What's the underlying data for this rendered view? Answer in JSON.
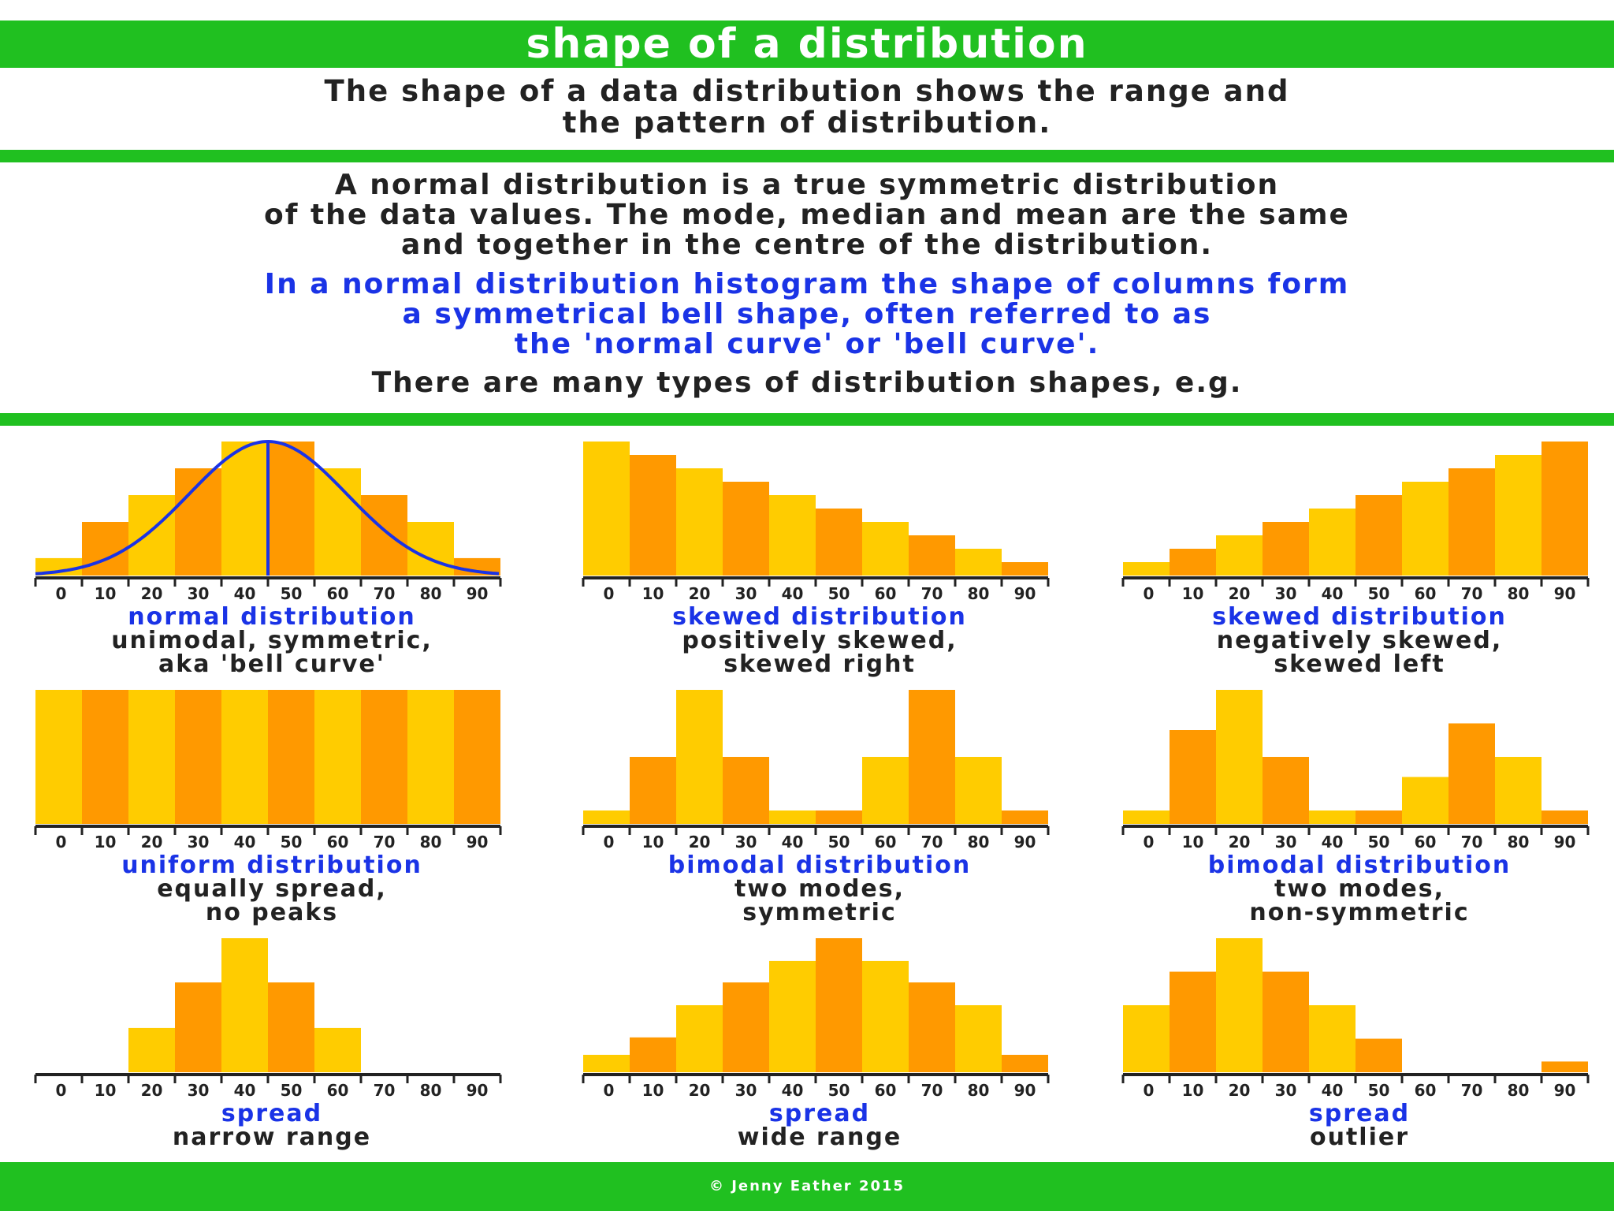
{
  "title": "shape of a distribution",
  "intro": [
    "The shape of a data distribution shows the range and",
    "the pattern of distribution."
  ],
  "normal_description": [
    "A normal distribution is a true symmetric distribution",
    "of the data values. The mode, median and mean are the same",
    "and together in the centre of the distribution."
  ],
  "bell_description": [
    "In a normal distribution histogram the shape of columns form",
    "a symmetrical bell shape, often referred to as",
    "the 'normal curve' or 'bell curve'."
  ],
  "types_line": "There are many types of distribution shapes, e.g.",
  "footer": "© Jenny Eather 2015",
  "colors": {
    "green": "#20c020",
    "bar_light": "#ffcc00",
    "bar_dark": "#ff9900",
    "blue": "#1a33e6"
  },
  "chart_data": [
    {
      "type": "bar",
      "categories": [
        "0",
        "10",
        "20",
        "30",
        "40",
        "50",
        "60",
        "70",
        "80",
        "90"
      ],
      "values": [
        1.3,
        4,
        6,
        8,
        10,
        10,
        8,
        6,
        4,
        1.3
      ],
      "ylim": [
        0,
        10
      ],
      "overlay": "bell-curve-with-center-line",
      "title": "normal distribution",
      "caption": [
        "unimodal, symmetric,",
        "aka 'bell curve'"
      ]
    },
    {
      "type": "bar",
      "categories": [
        "0",
        "10",
        "20",
        "30",
        "40",
        "50",
        "60",
        "70",
        "80",
        "90"
      ],
      "values": [
        10,
        9,
        8,
        7,
        6,
        5,
        4,
        3,
        2,
        1
      ],
      "ylim": [
        0,
        10
      ],
      "title": "skewed distribution",
      "caption": [
        "positively skewed,",
        "skewed right"
      ]
    },
    {
      "type": "bar",
      "categories": [
        "0",
        "10",
        "20",
        "30",
        "40",
        "50",
        "60",
        "70",
        "80",
        "90"
      ],
      "values": [
        1,
        2,
        3,
        4,
        5,
        6,
        7,
        8,
        9,
        10
      ],
      "ylim": [
        0,
        10
      ],
      "title": "skewed distribution",
      "caption": [
        "negatively skewed,",
        "skewed left"
      ]
    },
    {
      "type": "bar",
      "categories": [
        "0",
        "10",
        "20",
        "30",
        "40",
        "50",
        "60",
        "70",
        "80",
        "90"
      ],
      "values": [
        10,
        10,
        10,
        10,
        10,
        10,
        10,
        10,
        10,
        10
      ],
      "ylim": [
        0,
        10
      ],
      "title": "uniform distribution",
      "caption": [
        "equally spread,",
        "no peaks"
      ]
    },
    {
      "type": "bar",
      "categories": [
        "0",
        "10",
        "20",
        "30",
        "40",
        "50",
        "60",
        "70",
        "80",
        "90"
      ],
      "values": [
        1,
        5,
        10,
        5,
        1,
        1,
        5,
        10,
        5,
        1
      ],
      "ylim": [
        0,
        10
      ],
      "title": "bimodal distribution",
      "caption": [
        "two modes,",
        "symmetric"
      ]
    },
    {
      "type": "bar",
      "categories": [
        "0",
        "10",
        "20",
        "30",
        "40",
        "50",
        "60",
        "70",
        "80",
        "90"
      ],
      "values": [
        1,
        7,
        10,
        5,
        1,
        1,
        3.5,
        7.5,
        5,
        1
      ],
      "ylim": [
        0,
        10
      ],
      "title": "bimodal distribution",
      "caption": [
        "two modes,",
        "non-symmetric"
      ]
    },
    {
      "type": "bar",
      "categories": [
        "0",
        "10",
        "20",
        "30",
        "40",
        "50",
        "60",
        "70",
        "80",
        "90"
      ],
      "values": [
        0,
        0,
        3.3,
        6.7,
        10,
        6.7,
        3.3,
        0,
        0,
        0
      ],
      "ylim": [
        0,
        10
      ],
      "title": "spread",
      "caption": [
        "narrow range"
      ]
    },
    {
      "type": "bar",
      "categories": [
        "0",
        "10",
        "20",
        "30",
        "40",
        "50",
        "60",
        "70",
        "80",
        "90"
      ],
      "values": [
        1.3,
        2.6,
        5,
        6.7,
        8.3,
        10,
        8.3,
        6.7,
        5,
        1.3
      ],
      "ylim": [
        0,
        10
      ],
      "title": "spread",
      "caption": [
        "wide range"
      ]
    },
    {
      "type": "bar",
      "categories": [
        "0",
        "10",
        "20",
        "30",
        "40",
        "50",
        "60",
        "70",
        "80",
        "90"
      ],
      "values": [
        5,
        7.5,
        10,
        7.5,
        5,
        2.5,
        0,
        0,
        0,
        0.8
      ],
      "ylim": [
        0,
        10
      ],
      "title": "spread",
      "caption": [
        "outlier"
      ]
    }
  ]
}
